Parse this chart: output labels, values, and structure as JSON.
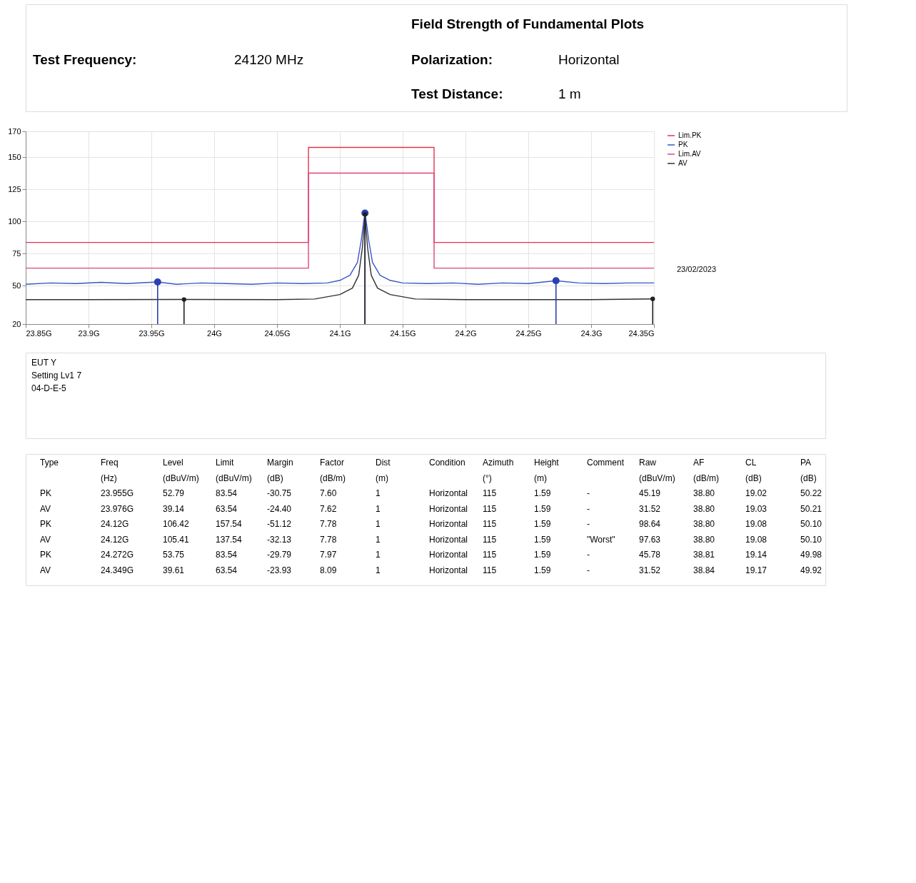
{
  "chart_data": {
    "type": "line",
    "title": "Field Strength of Fundamental Plots",
    "annotations": [
      "Test Frequency:",
      "24120 MHz",
      "Polarization:",
      "Horizontal",
      "Test Distance:",
      "1 m",
      "23/02/2023",
      "EUT Y",
      "Setting Lv1 7",
      "04-D-E-5",
      "Type",
      "Freq",
      "Level",
      "Limit",
      "Margin",
      "Factor",
      "Dist",
      "Condition",
      "Azimuth",
      "Height",
      "Comment",
      "Raw",
      "AF",
      "CL",
      "PA",
      "(Hz)",
      "(dBuV/m)",
      "(dBuV/m)",
      "(dB)",
      "(dB/m)",
      "(m)",
      "(°)",
      "(m)",
      "(dBuV/m)",
      "(dB/m)",
      "(dB)",
      "(dB)",
      "PK",
      "23.955G",
      "52.79",
      "83.54",
      "-30.75",
      "7.60",
      "1",
      "Horizontal",
      "115",
      "1.59",
      "-",
      "45.19",
      "38.80",
      "19.02",
      "50.22",
      "AV",
      "23.976G",
      "39.14",
      "63.54",
      "-24.40",
      "7.62",
      "1",
      "Horizontal",
      "115",
      "1.59",
      "-",
      "31.52",
      "38.80",
      "19.03",
      "50.21",
      "PK",
      "24.12G",
      "106.42",
      "157.54",
      "-51.12",
      "7.78",
      "1",
      "Horizontal",
      "115",
      "1.59",
      "-",
      "98.64",
      "38.80",
      "19.08",
      "50.10",
      "AV",
      "24.12G",
      "105.41",
      "137.54",
      "-32.13",
      "7.78",
      "1",
      "Horizontal",
      "115",
      "1.59",
      "\"Worst\"",
      "97.63",
      "38.80",
      "19.08",
      "50.10",
      "PK",
      "24.272G",
      "53.75",
      "83.54",
      "-29.79",
      "7.97",
      "1",
      "Horizontal",
      "115",
      "1.59",
      "-",
      "45.78",
      "38.81",
      "19.14",
      "49.98",
      "AV",
      "24.349G",
      "39.61",
      "63.54",
      "-23.93",
      "8.09",
      "1",
      "Horizontal",
      "115",
      "1.59",
      "-",
      "31.52",
      "38.84",
      "19.17",
      "49.92"
    ],
    "series": [
      {
        "name": "Lim.PK",
        "type": "step",
        "color": "#e8334a",
        "x": [
          23.85,
          24.075,
          24.175,
          24.35
        ],
        "values": [
          83.54,
          157.54,
          83.54,
          83.54
        ]
      },
      {
        "name": "PK",
        "color": "#3a55c8",
        "x": [
          23.85,
          23.87,
          23.89,
          23.91,
          23.93,
          23.955,
          23.97,
          23.99,
          24.01,
          24.03,
          24.05,
          24.07,
          24.09,
          24.1,
          24.108,
          24.114,
          24.117,
          24.119,
          24.12,
          24.121,
          24.123,
          24.126,
          24.132,
          24.14,
          24.15,
          24.17,
          24.19,
          24.21,
          24.23,
          24.25,
          24.272,
          24.29,
          24.31,
          24.33,
          24.35
        ],
        "values": [
          51,
          52,
          51.5,
          52.5,
          51.5,
          52.79,
          51,
          52,
          51.5,
          51,
          52,
          51.5,
          52,
          54,
          58,
          68,
          85,
          100,
          106.42,
          100,
          85,
          68,
          58,
          54,
          52,
          51.5,
          52,
          51,
          52,
          51.5,
          53.75,
          52,
          51.5,
          52,
          52
        ]
      },
      {
        "name": "Lim.AV",
        "type": "step",
        "color": "#e0457b",
        "x": [
          23.85,
          24.075,
          24.175,
          24.35
        ],
        "values": [
          63.54,
          137.54,
          63.54,
          63.54
        ]
      },
      {
        "name": "AV",
        "color": "#303030",
        "x": [
          23.85,
          23.9,
          23.976,
          24.05,
          24.08,
          24.1,
          24.11,
          24.115,
          24.118,
          24.12,
          24.122,
          24.125,
          24.13,
          24.14,
          24.16,
          24.2,
          24.25,
          24.3,
          24.349,
          24.35
        ],
        "values": [
          39,
          39,
          39.14,
          39,
          39.5,
          43,
          48,
          58,
          80,
          105.41,
          80,
          58,
          48,
          43,
          39.5,
          39,
          39,
          39,
          39.61,
          39.6
        ]
      },
      {
        "type": "lollipop",
        "marker": "circle",
        "color": "#2a3fb0",
        "x": [
          23.955,
          24.12,
          24.272
        ],
        "values": [
          52.79,
          106.42,
          53.75
        ]
      },
      {
        "type": "lollipop",
        "marker": "circle",
        "color": "#202020",
        "x": [
          23.976,
          24.12,
          24.349
        ],
        "values": [
          39.14,
          105.41,
          39.61
        ]
      }
    ],
    "xlim": [
      23.85,
      24.35
    ],
    "xticks": [
      {
        "value": 23.85,
        "label": "23.85G"
      },
      {
        "value": 23.9,
        "label": "23.9G"
      },
      {
        "value": 23.95,
        "label": "23.95G"
      },
      {
        "value": 24,
        "label": "24G"
      },
      {
        "value": 24.05,
        "label": "24.05G"
      },
      {
        "value": 24.1,
        "label": "24.1G"
      },
      {
        "value": 24.15,
        "label": "24.15G"
      },
      {
        "value": 24.2,
        "label": "24.2G"
      },
      {
        "value": 24.25,
        "label": "24.25G"
      },
      {
        "value": 24.3,
        "label": "24.3G"
      },
      {
        "value": 24.35,
        "label": "24.35G"
      }
    ],
    "ylim": [
      20,
      170
    ],
    "yticks": [
      20,
      50,
      75,
      100,
      125,
      150,
      170
    ],
    "grid": true,
    "legend": "top right"
  }
}
